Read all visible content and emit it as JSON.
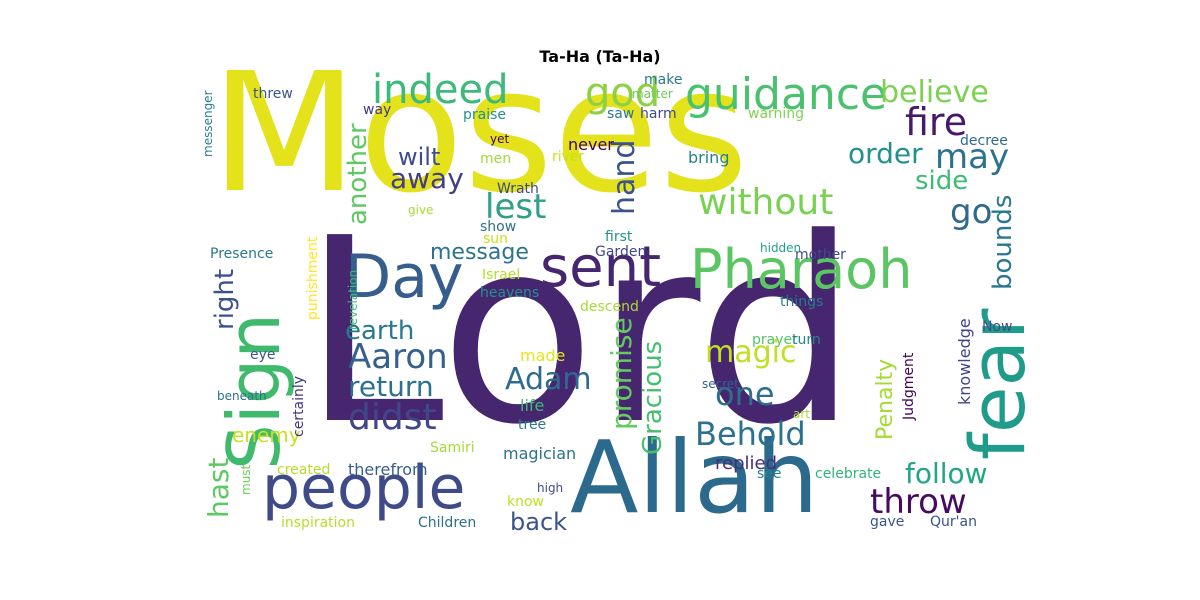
{
  "title": "Ta-Ha (Ta-Ha)",
  "words": [
    {
      "text": "Lord",
      "color": "#46266f"
    },
    {
      "text": "Moses",
      "color": "#e3e21b"
    },
    {
      "text": "Allah",
      "color": "#2b6a8c"
    },
    {
      "text": "people",
      "color": "#3f4b89"
    },
    {
      "text": "Sign",
      "color": "#3fb96c"
    },
    {
      "text": "Pharaoh",
      "color": "#5cc563"
    },
    {
      "text": "Day",
      "color": "#355e8d"
    },
    {
      "text": "sent",
      "color": "#46266f"
    },
    {
      "text": "fear",
      "color": "#1f9b8a"
    },
    {
      "text": "guidance",
      "color": "#4ac16e"
    },
    {
      "text": "indeed",
      "color": "#3cb97b"
    },
    {
      "text": "god",
      "color": "#8dd044"
    },
    {
      "text": "believe",
      "color": "#7bd151"
    },
    {
      "text": "fire",
      "color": "#48186a"
    },
    {
      "text": "may",
      "color": "#2d718e"
    },
    {
      "text": "order",
      "color": "#21918c"
    },
    {
      "text": "without",
      "color": "#7ad151"
    },
    {
      "text": "lest",
      "color": "#2f9f87"
    },
    {
      "text": "hand",
      "color": "#3b528b"
    },
    {
      "text": "go",
      "color": "#31688e"
    },
    {
      "text": "side",
      "color": "#3cbb75"
    },
    {
      "text": "bounds",
      "color": "#2a788e"
    },
    {
      "text": "another",
      "color": "#5ec962"
    },
    {
      "text": "away",
      "color": "#433e85"
    },
    {
      "text": "wilt",
      "color": "#3e4c8a"
    },
    {
      "text": "message",
      "color": "#2c738e"
    },
    {
      "text": "Garden",
      "color": "#414487"
    },
    {
      "text": "right",
      "color": "#3a538b"
    },
    {
      "text": "earth",
      "color": "#2a788e"
    },
    {
      "text": "Aaron",
      "color": "#355f8d"
    },
    {
      "text": "return",
      "color": "#2c728e"
    },
    {
      "text": "didst",
      "color": "#404688"
    },
    {
      "text": "Adam",
      "color": "#2f6b8e"
    },
    {
      "text": "promise",
      "color": "#63cb5f"
    },
    {
      "text": "Gracious",
      "color": "#44bf70"
    },
    {
      "text": "magic",
      "color": "#c2df23"
    },
    {
      "text": "one",
      "color": "#2e6f8e"
    },
    {
      "text": "Behold",
      "color": "#2c728e"
    },
    {
      "text": "Penalty",
      "color": "#a5db36"
    },
    {
      "text": "Judgment",
      "color": "#440154"
    },
    {
      "text": "knowledge",
      "color": "#414487"
    },
    {
      "text": "Now",
      "color": "#3e4a89"
    },
    {
      "text": "hast",
      "color": "#5ec962"
    },
    {
      "text": "enemy",
      "color": "#c8e020"
    },
    {
      "text": "follow",
      "color": "#21a685"
    },
    {
      "text": "throw",
      "color": "#460b5e"
    },
    {
      "text": "replied",
      "color": "#472d7b"
    },
    {
      "text": "back",
      "color": "#3b528b"
    },
    {
      "text": "messenger",
      "color": "#277f8e"
    },
    {
      "text": "threw",
      "color": "#39568c"
    },
    {
      "text": "way",
      "color": "#443983"
    },
    {
      "text": "praise",
      "color": "#21918c"
    },
    {
      "text": "make",
      "color": "#2a788e"
    },
    {
      "text": "matter",
      "color": "#6ccd5a"
    },
    {
      "text": "saw",
      "color": "#2a788e"
    },
    {
      "text": "harm",
      "color": "#3e4989"
    },
    {
      "text": "warning",
      "color": "#7fd34e"
    },
    {
      "text": "decree",
      "color": "#31688e"
    },
    {
      "text": "yet",
      "color": "#440154"
    },
    {
      "text": "never",
      "color": "#440154"
    },
    {
      "text": "river",
      "color": "#c8e020"
    },
    {
      "text": "men",
      "color": "#a0da39"
    },
    {
      "text": "bring",
      "color": "#26828e"
    },
    {
      "text": "Wrath",
      "color": "#3e4a89"
    },
    {
      "text": "give",
      "color": "#a5db36"
    },
    {
      "text": "show",
      "color": "#2d708e"
    },
    {
      "text": "sun",
      "color": "#c8e020"
    },
    {
      "text": "first",
      "color": "#21918c"
    },
    {
      "text": "hidden",
      "color": "#20a386"
    },
    {
      "text": "mother",
      "color": "#3e4a89"
    },
    {
      "text": "Presence",
      "color": "#2a788e"
    },
    {
      "text": "punishment",
      "color": "#fde725"
    },
    {
      "text": "revelation",
      "color": "#3cbb75"
    },
    {
      "text": "Israel",
      "color": "#b5de2b"
    },
    {
      "text": "heavens",
      "color": "#21918c"
    },
    {
      "text": "descend",
      "color": "#a8db34"
    },
    {
      "text": "things",
      "color": "#2a788e"
    },
    {
      "text": "prayer",
      "color": "#52c569"
    },
    {
      "text": "turn",
      "color": "#25858e"
    },
    {
      "text": "eye",
      "color": "#39568c"
    },
    {
      "text": "certainly",
      "color": "#46337e"
    },
    {
      "text": "made",
      "color": "#e5e419"
    },
    {
      "text": "secret",
      "color": "#355f8d"
    },
    {
      "text": "beneath",
      "color": "#2d708e"
    },
    {
      "text": "life",
      "color": "#3cbb75"
    },
    {
      "text": "art",
      "color": "#a5db36"
    },
    {
      "text": "tree",
      "color": "#2a788e"
    },
    {
      "text": "Samiri",
      "color": "#a5db36"
    },
    {
      "text": "created",
      "color": "#b5de2b"
    },
    {
      "text": "therefrom",
      "color": "#355f8d"
    },
    {
      "text": "must",
      "color": "#6ccd5a"
    },
    {
      "text": "magician",
      "color": "#2c728e"
    },
    {
      "text": "high",
      "color": "#3e4a89"
    },
    {
      "text": "see",
      "color": "#26828e"
    },
    {
      "text": "celebrate",
      "color": "#2fb47c"
    },
    {
      "text": "know",
      "color": "#c2df23"
    },
    {
      "text": "inspiration",
      "color": "#b5de2b"
    },
    {
      "text": "Children",
      "color": "#2c728e"
    },
    {
      "text": "gave",
      "color": "#3b528b"
    },
    {
      "text": "Qur'an",
      "color": "#3b528b"
    }
  ]
}
